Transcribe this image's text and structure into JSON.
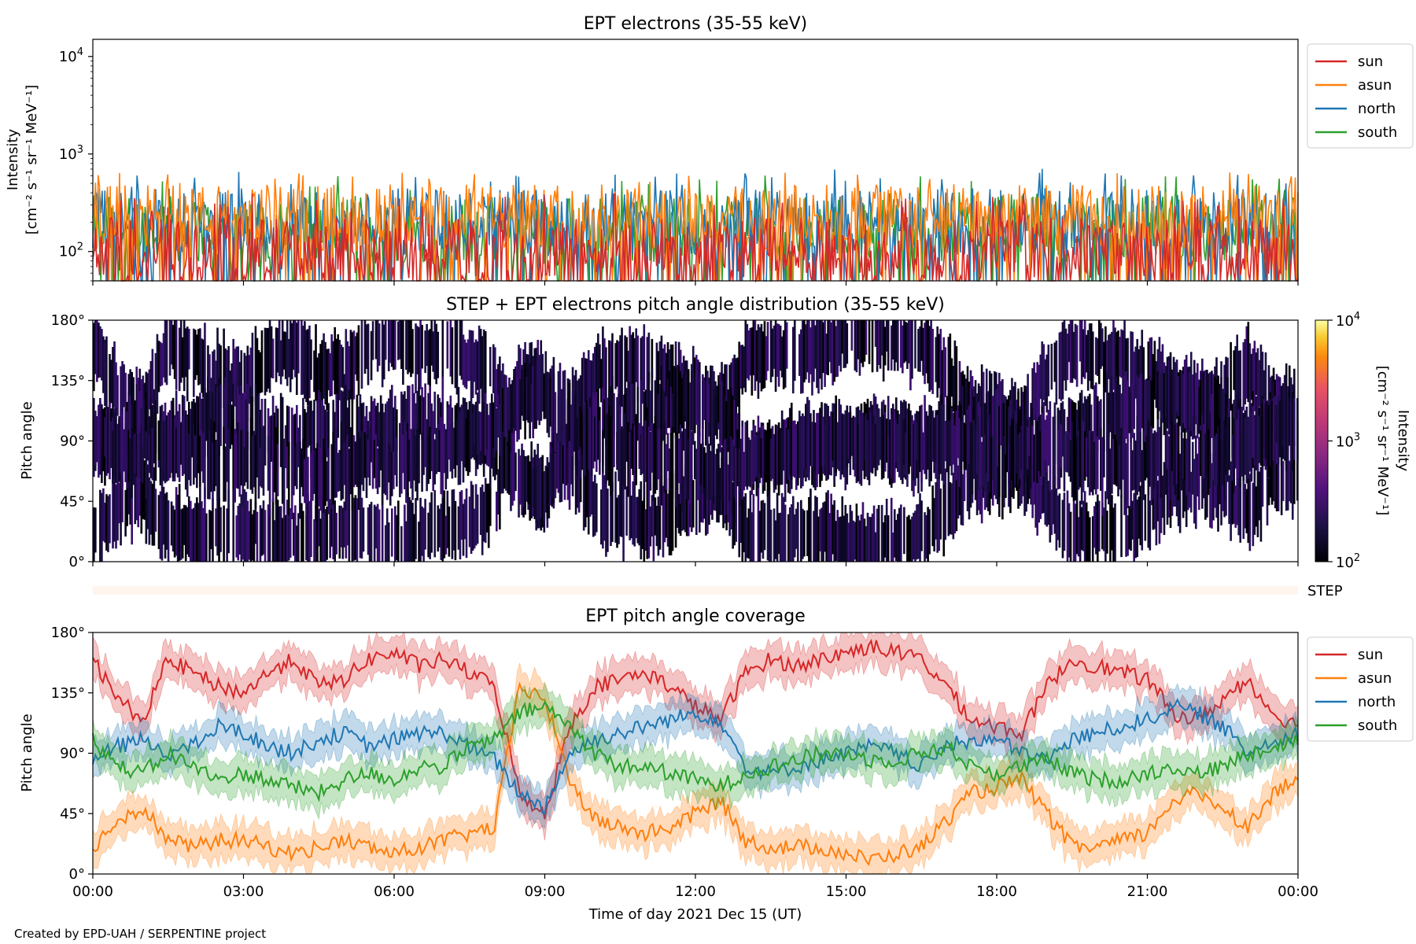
{
  "figure": {
    "credit": "Created by EPD-UAH / SERPENTINE project",
    "xlabel": "Time of day 2021 Dec 15 (UT)",
    "x_ticks": [
      "00:00",
      "03:00",
      "06:00",
      "09:00",
      "12:00",
      "15:00",
      "18:00",
      "21:00",
      "00:00"
    ],
    "x_range_hours": [
      0,
      24
    ]
  },
  "colors": {
    "sun": "#d62728",
    "asun": "#ff7f0e",
    "north": "#1f77b4",
    "south": "#2ca02c"
  },
  "chart_data": [
    {
      "type": "line",
      "title": "EPT electrons (35-55 keV)",
      "ylabel_line1": "Intensity",
      "ylabel_line2": "[cm⁻² s⁻¹ sr⁻¹ MeV⁻¹]",
      "yscale": "log",
      "ylim": [
        50,
        15000
      ],
      "y_ticks": [
        {
          "value": 100,
          "base": "10",
          "exp": "2"
        },
        {
          "value": 1000,
          "base": "10",
          "exp": "3"
        },
        {
          "value": 10000,
          "base": "10",
          "exp": "4"
        }
      ],
      "legend_position": "outside-upper-right",
      "series": [
        {
          "name": "sun",
          "color_key": "sun",
          "typical": 100,
          "peak": 400
        },
        {
          "name": "asun",
          "color_key": "asun",
          "typical": 220,
          "peak": 650
        },
        {
          "name": "north",
          "color_key": "north",
          "typical": 200,
          "peak": 720
        },
        {
          "name": "south",
          "color_key": "south",
          "typical": 170,
          "peak": 620
        }
      ],
      "note_values": "Noisy fluctuating intensities between ~50 and ~700 over 00:00-24:00"
    },
    {
      "type": "heatmap",
      "title": "STEP + EPT electrons pitch angle distribution (35-55 keV)",
      "ylabel": "Pitch angle",
      "y_ticks": [
        "0°",
        "45°",
        "90°",
        "135°",
        "180°"
      ],
      "ylim": [
        0,
        180
      ],
      "colorbar": {
        "label_line1": "Intensity",
        "label_line2": "[cm⁻² s⁻¹ sr⁻¹ MeV⁻¹]",
        "scale": "log",
        "range": [
          100,
          10000
        ],
        "ticks": [
          {
            "base": "10",
            "exp": "2"
          },
          {
            "base": "10",
            "exp": "3"
          },
          {
            "base": "10",
            "exp": "4"
          }
        ]
      },
      "step_label": "STEP"
    },
    {
      "type": "line",
      "title": "EPT pitch angle coverage",
      "ylabel": "Pitch angle",
      "y_ticks": [
        "0°",
        "45°",
        "90°",
        "135°",
        "180°"
      ],
      "ylim": [
        0,
        180
      ],
      "legend_position": "outside-upper-right",
      "x_hours": [
        0,
        0.5,
        1,
        1.5,
        2,
        2.5,
        3,
        3.5,
        4,
        4.5,
        5,
        5.5,
        6,
        6.5,
        7,
        7.5,
        8,
        8.5,
        9,
        9.5,
        10,
        10.5,
        11,
        11.5,
        12,
        12.5,
        13,
        13.5,
        14,
        14.5,
        15,
        15.5,
        16,
        16.5,
        17,
        17.5,
        18,
        18.5,
        19,
        19.5,
        20,
        20.5,
        21,
        21.5,
        22,
        22.5,
        23,
        23.5,
        24
      ],
      "series": [
        {
          "name": "sun",
          "color_key": "sun",
          "values": [
            160,
            130,
            115,
            160,
            150,
            140,
            135,
            150,
            160,
            140,
            145,
            160,
            165,
            155,
            160,
            150,
            140,
            60,
            45,
            110,
            140,
            145,
            150,
            140,
            125,
            115,
            150,
            160,
            155,
            160,
            165,
            170,
            165,
            160,
            140,
            115,
            110,
            105,
            140,
            160,
            155,
            150,
            145,
            120,
            115,
            130,
            145,
            120,
            110
          ]
        },
        {
          "name": "asun",
          "color_key": "asun",
          "values": [
            20,
            40,
            50,
            25,
            20,
            25,
            25,
            20,
            15,
            20,
            25,
            20,
            15,
            20,
            25,
            30,
            35,
            140,
            130,
            70,
            40,
            35,
            30,
            35,
            45,
            55,
            25,
            20,
            20,
            20,
            15,
            10,
            15,
            20,
            40,
            60,
            65,
            70,
            45,
            20,
            20,
            25,
            30,
            55,
            60,
            50,
            35,
            60,
            70
          ]
        },
        {
          "name": "north",
          "color_key": "north",
          "values": [
            85,
            95,
            100,
            90,
            95,
            110,
            105,
            95,
            90,
            100,
            105,
            95,
            100,
            105,
            105,
            95,
            85,
            60,
            50,
            90,
            100,
            105,
            110,
            115,
            120,
            115,
            80,
            75,
            80,
            85,
            90,
            95,
            90,
            80,
            95,
            100,
            100,
            90,
            85,
            100,
            105,
            110,
            115,
            125,
            120,
            110,
            90,
            100,
            105
          ]
        },
        {
          "name": "south",
          "color_key": "south",
          "values": [
            100,
            80,
            75,
            90,
            80,
            70,
            75,
            70,
            65,
            60,
            70,
            75,
            70,
            80,
            80,
            95,
            100,
            120,
            125,
            110,
            90,
            80,
            80,
            75,
            70,
            65,
            75,
            80,
            85,
            90,
            90,
            85,
            85,
            90,
            95,
            80,
            75,
            80,
            85,
            75,
            70,
            70,
            75,
            80,
            75,
            80,
            90,
            95,
            100
          ]
        }
      ]
    }
  ]
}
